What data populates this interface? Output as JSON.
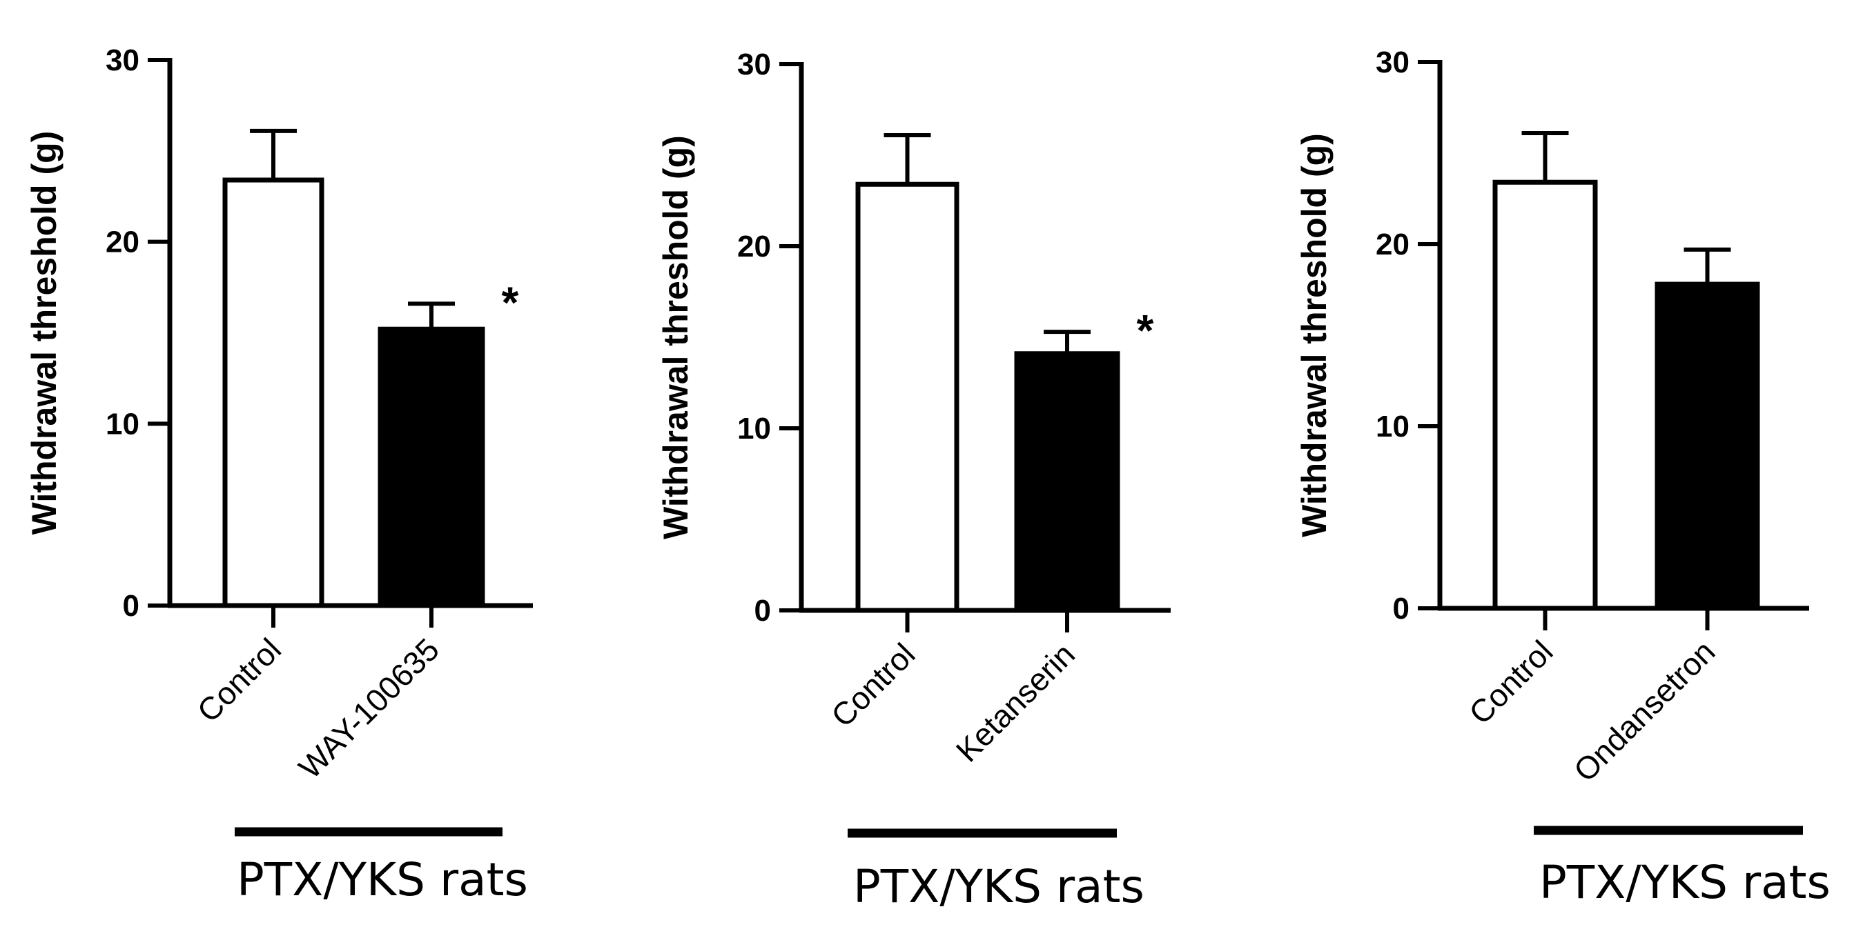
{
  "chart_data": [
    {
      "type": "bar",
      "ylabel": "Withdrawal threshold (g)",
      "ylim": [
        0,
        30
      ],
      "yticks": [
        "0",
        "10",
        "20",
        "30"
      ],
      "categories": [
        "Control",
        "WAY-100635"
      ],
      "values": [
        23.4,
        15.2
      ],
      "errors": [
        2.7,
        1.4
      ],
      "bar_fill": [
        "#ffffff",
        "#000000"
      ],
      "significance": [
        "",
        "*"
      ],
      "group_label": "PTX/YKS rats"
    },
    {
      "type": "bar",
      "ylabel": "Withdrawal threshold (g)",
      "ylim": [
        0,
        30
      ],
      "yticks": [
        "0",
        "10",
        "20",
        "30"
      ],
      "categories": [
        "Control",
        "Ketanserin"
      ],
      "values": [
        23.4,
        14.1
      ],
      "errors": [
        2.7,
        1.2
      ],
      "bar_fill": [
        "#ffffff",
        "#000000"
      ],
      "significance": [
        "",
        "*"
      ],
      "group_label": "PTX/YKS rats"
    },
    {
      "type": "bar",
      "ylabel": "Withdrawal threshold (g)",
      "ylim": [
        0,
        30
      ],
      "yticks": [
        "0",
        "10",
        "20",
        "30"
      ],
      "categories": [
        "Control",
        "Ondansetron"
      ],
      "values": [
        23.4,
        17.8
      ],
      "errors": [
        2.7,
        1.9
      ],
      "bar_fill": [
        "#ffffff",
        "#000000"
      ],
      "significance": [
        "",
        ""
      ],
      "group_label": "PTX/YKS rats"
    }
  ]
}
